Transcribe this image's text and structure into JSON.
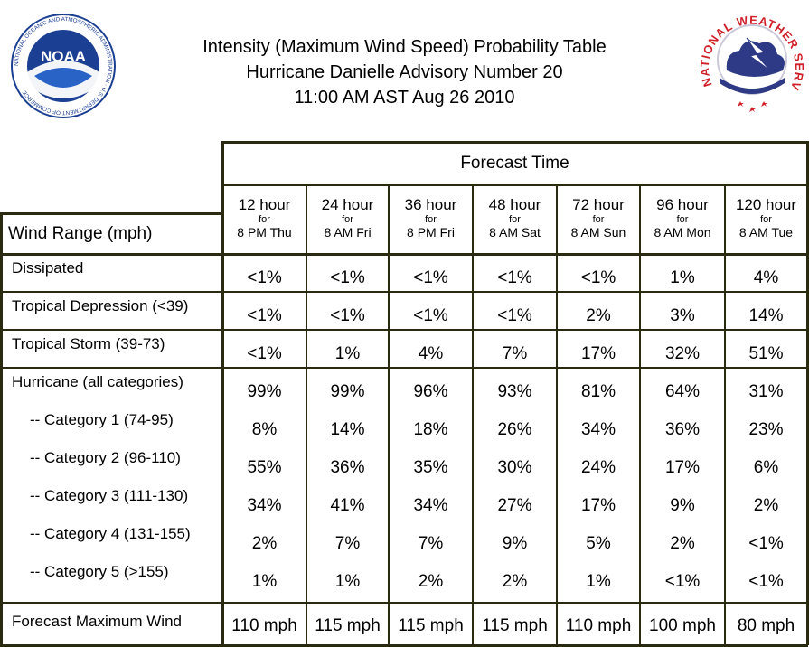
{
  "title": {
    "line1": "Intensity (Maximum Wind Speed) Probability Table",
    "line2": "Hurricane Danielle Advisory Number 20",
    "line3": "11:00 AM AST Aug 26 2010"
  },
  "logos": {
    "noaa": {
      "icon": "noaa-logo",
      "text": "NOAA",
      "ring_text": "NATIONAL OCEANIC AND ATMOSPHERIC ADMINISTRATION · U.S. DEPARTMENT OF COMMERCE"
    },
    "nws": {
      "icon": "nws-logo",
      "ring_text": "NATIONAL WEATHER SERVICE"
    }
  },
  "colors": {
    "grid": "#2a2a10",
    "noaa_blue": "#1b3f92",
    "nws_red": "#d0202a",
    "nws_cloud": "#2e3a86"
  },
  "table": {
    "forecast_time_label": "Forecast Time",
    "wind_range_label": "Wind Range (mph)",
    "columns": [
      {
        "hour": "12 hour",
        "for": "for",
        "time": "8 PM Thu"
      },
      {
        "hour": "24 hour",
        "for": "for",
        "time": "8 AM Fri"
      },
      {
        "hour": "36 hour",
        "for": "for",
        "time": "8 PM Fri"
      },
      {
        "hour": "48 hour",
        "for": "for",
        "time": "8 AM Sat"
      },
      {
        "hour": "72 hour",
        "for": "for",
        "time": "8 AM Sun"
      },
      {
        "hour": "96 hour",
        "for": "for",
        "time": "8 AM Mon"
      },
      {
        "hour": "120 hour",
        "for": "for",
        "time": "8 AM Tue"
      }
    ],
    "rows": [
      {
        "label": "Dissipated",
        "values": [
          "<1%",
          "<1%",
          "<1%",
          "<1%",
          "<1%",
          "1%",
          "4%"
        ]
      },
      {
        "label": "Tropical Depression (<39)",
        "values": [
          "<1%",
          "<1%",
          "<1%",
          "<1%",
          "2%",
          "3%",
          "14%"
        ]
      },
      {
        "label": "Tropical Storm (39-73)",
        "values": [
          "<1%",
          "1%",
          "4%",
          "7%",
          "17%",
          "32%",
          "51%"
        ]
      },
      {
        "label": "Hurricane (all categories)",
        "values": [
          "99%",
          "99%",
          "96%",
          "93%",
          "81%",
          "64%",
          "31%"
        ]
      },
      {
        "label": "-- Category 1 (74-95)",
        "values": [
          "8%",
          "14%",
          "18%",
          "26%",
          "34%",
          "36%",
          "23%"
        ]
      },
      {
        "label": "-- Category 2 (96-110)",
        "values": [
          "55%",
          "36%",
          "35%",
          "30%",
          "24%",
          "17%",
          "6%"
        ]
      },
      {
        "label": "-- Category 3 (111-130)",
        "values": [
          "34%",
          "41%",
          "34%",
          "27%",
          "17%",
          "9%",
          "2%"
        ]
      },
      {
        "label": "-- Category 4 (131-155)",
        "values": [
          "2%",
          "7%",
          "7%",
          "9%",
          "5%",
          "2%",
          "<1%"
        ]
      },
      {
        "label": "-- Category 5 (>155)",
        "values": [
          "1%",
          "1%",
          "2%",
          "2%",
          "1%",
          "<1%",
          "<1%"
        ]
      },
      {
        "label": "Forecast Maximum Wind",
        "values": [
          "110 mph",
          "115 mph",
          "115 mph",
          "115 mph",
          "110 mph",
          "100 mph",
          "80 mph"
        ]
      }
    ]
  }
}
